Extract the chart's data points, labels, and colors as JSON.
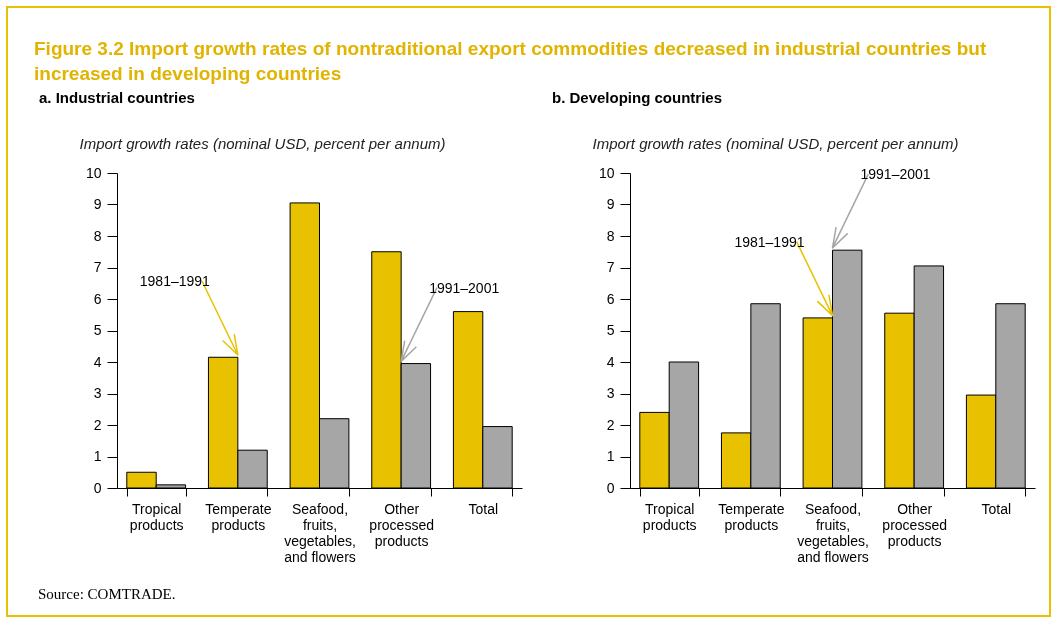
{
  "chart_data": [
    {
      "type": "bar",
      "title": "Figure 3.2  Import growth rates of nontraditional export commodities decreased in industrial countries but increased in developing countries",
      "subtitle": "a. Industrial countries",
      "ylabel": "Import growth rates (nominal USD, percent per annum)",
      "categories": [
        "Tropical products",
        "Temperate products",
        "Seafood, fruits, vegetables, and flowers",
        "Other processed products",
        "Total"
      ],
      "series": [
        {
          "color": "#e8c200",
          "values": [
            0.5,
            4.15,
            9.05,
            7.5,
            5.6
          ]
        },
        {
          "color": "#a6a6a6",
          "values": [
            0.1,
            1.2,
            2.2,
            3.95,
            1.95
          ]
        }
      ],
      "ylim": [
        0,
        10
      ],
      "yticks": [
        0,
        1,
        2,
        3,
        4,
        5,
        6,
        7,
        8,
        9,
        10
      ],
      "grid": false,
      "legend": false,
      "annotations": [
        {
          "text": "1981–1991",
          "x": "Temperate products",
          "y": 4.15
        },
        {
          "text": "1991–2001",
          "x": "Other processed products",
          "y": 3.95
        },
        "Source: COMTRADE."
      ]
    },
    {
      "type": "bar",
      "subtitle": "b. Developing countries",
      "ylabel": "Import growth rates (nominal USD, percent per annum)",
      "categories": [
        "Tropical products",
        "Temperate products",
        "Seafood, fruits, vegetables, and flowers",
        "Other processed products",
        "Total"
      ],
      "series": [
        {
          "color": "#e8c200",
          "values": [
            2.4,
            1.75,
            5.4,
            5.55,
            2.95
          ]
        },
        {
          "color": "#a6a6a6",
          "values": [
            4.0,
            5.85,
            7.55,
            7.05,
            5.85
          ]
        }
      ],
      "ylim": [
        0,
        10
      ],
      "yticks": [
        0,
        1,
        2,
        3,
        4,
        5,
        6,
        7,
        8,
        9,
        10
      ],
      "grid": false,
      "legend": false,
      "annotations": [
        {
          "text": "1981–1991",
          "x": "Seafood, fruits, vegetables, and flowers",
          "y": 5.4
        },
        {
          "text": "1991–2001",
          "x": "Seafood, fruits, vegetables, and flowers",
          "y": 7.55
        }
      ]
    }
  ]
}
